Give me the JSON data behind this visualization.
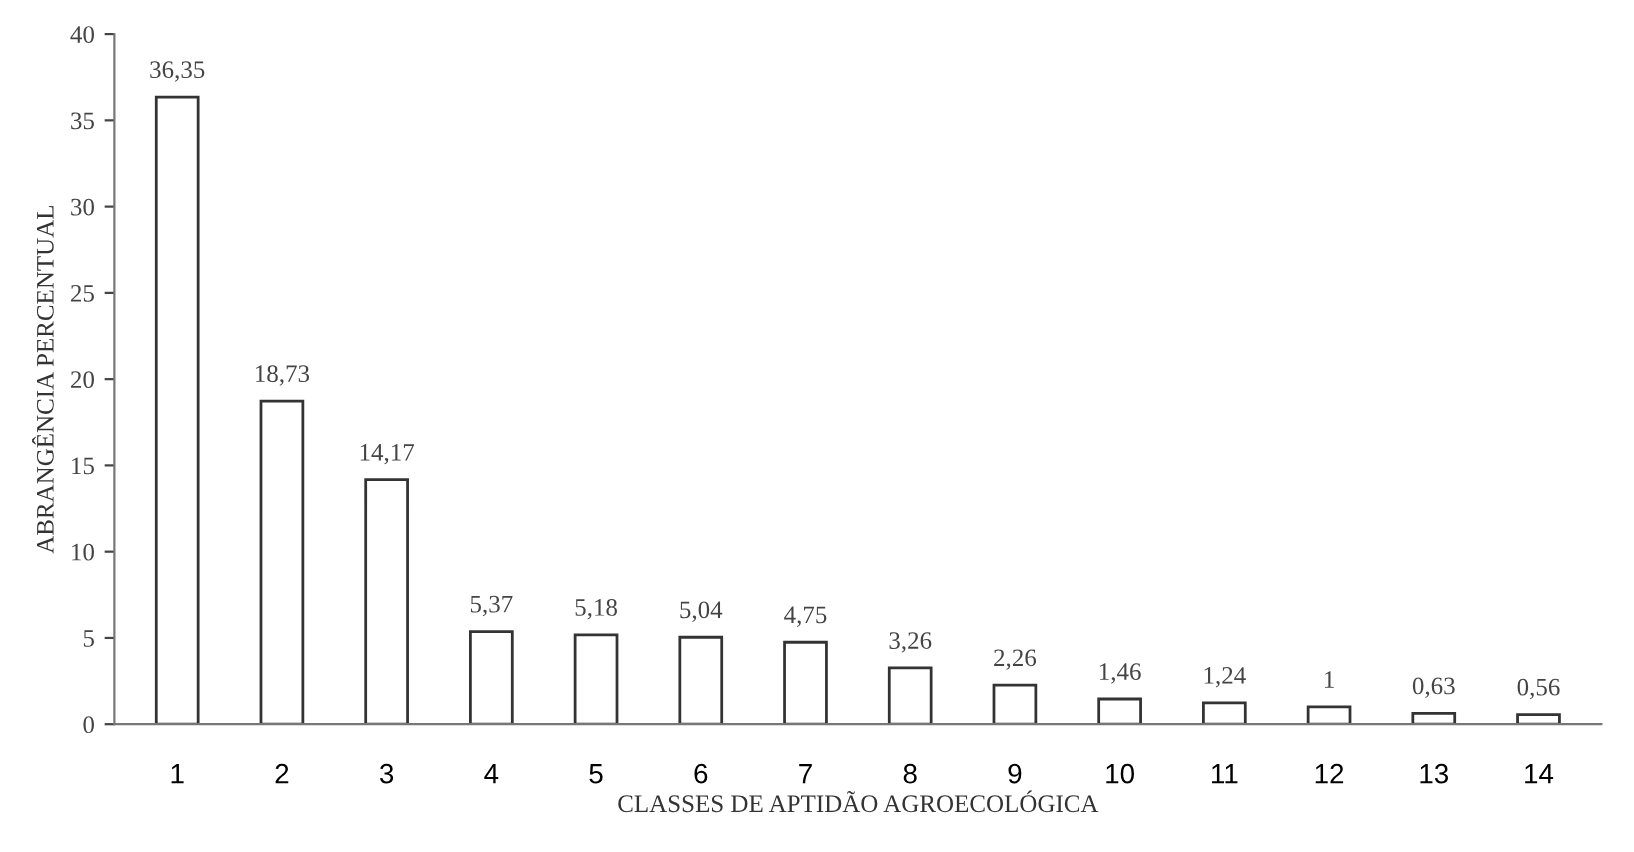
{
  "chart_data": {
    "type": "bar",
    "xlabel": "CLASSES DE APTIDÃO AGROECOLÓGICA",
    "ylabel": "ABRANGÊNCIA PERCENTUAL",
    "categories": [
      "1",
      "2",
      "3",
      "4",
      "5",
      "6",
      "7",
      "8",
      "9",
      "10",
      "11",
      "12",
      "13",
      "14"
    ],
    "values": [
      36.35,
      18.73,
      14.17,
      5.37,
      5.18,
      5.04,
      4.75,
      3.26,
      2.26,
      1.46,
      1.24,
      1,
      0.63,
      0.56
    ],
    "value_labels": [
      "36,35",
      "18,73",
      "14,17",
      "5,37",
      "5,18",
      "5,04",
      "4,75",
      "3,26",
      "2,26",
      "1,46",
      "1,24",
      "1",
      "0,63",
      "0,56"
    ],
    "color": "#ffffff",
    "ylim": [
      0,
      40
    ],
    "yticks": [
      0,
      5,
      10,
      15,
      20,
      25,
      30,
      35,
      40
    ],
    "grid": false,
    "legend": false
  }
}
